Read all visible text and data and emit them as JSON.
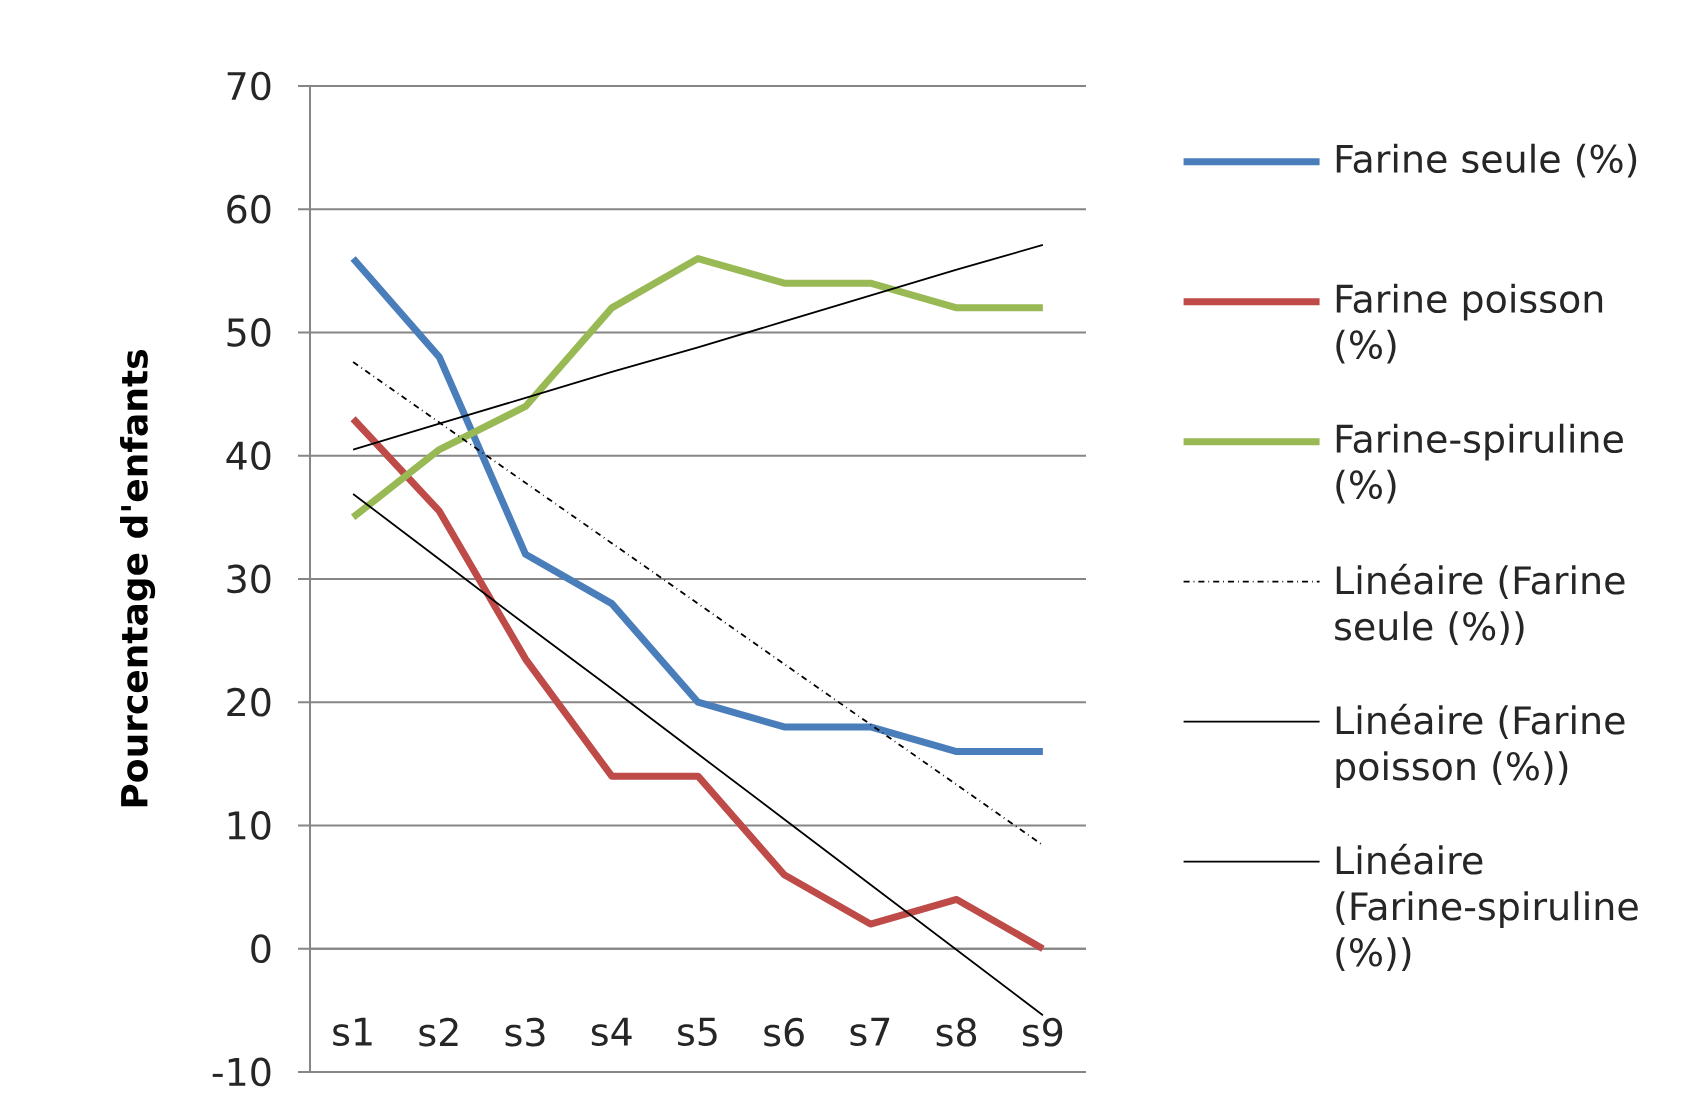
{
  "chart_data": {
    "type": "line",
    "ylabel": "Pourcentage d'enfants",
    "categories": [
      "s1",
      "s2",
      "s3",
      "s4",
      "s5",
      "s6",
      "s7",
      "s8",
      "s9"
    ],
    "ylim": [
      -10,
      70
    ],
    "yticks": [
      -10,
      0,
      10,
      20,
      30,
      40,
      50,
      60,
      70
    ],
    "grid": "y",
    "legend": "right",
    "series": [
      {
        "name": "Farine seule (%)",
        "color": "#4a7ebb",
        "values": [
          56,
          48,
          32,
          28,
          20,
          18,
          18,
          16,
          16
        ]
      },
      {
        "name": "Farine poisson (%)",
        "color": "#be4b48",
        "values": [
          43,
          35.5,
          23.5,
          14,
          14,
          6,
          2,
          4,
          0
        ]
      },
      {
        "name": "Farine-spiruline (%)",
        "color": "#98b954",
        "values": [
          35,
          40.5,
          44,
          52,
          56,
          54,
          54,
          52,
          52
        ]
      },
      {
        "name": "Linéaire (Farine seule (%))",
        "color": "#000000",
        "line_style": "dashdot",
        "values": [
          47.6,
          42.7,
          37.8,
          32.9,
          28.0,
          23.1,
          18.2,
          13.3,
          8.4
        ]
      },
      {
        "name": "Linéaire (Farine poisson (%))",
        "color": "#000000",
        "line_style": "solid",
        "values": [
          36.9,
          31.6,
          26.3,
          21.1,
          15.8,
          10.5,
          5.2,
          -0.1,
          -5.4
        ]
      },
      {
        "name": "Linéaire (Farine-spiruline (%))",
        "color": "#000000",
        "line_style": "solid",
        "values": [
          40.5,
          42.6,
          44.7,
          46.8,
          48.8,
          50.9,
          53.0,
          55.1,
          57.1
        ]
      }
    ]
  }
}
